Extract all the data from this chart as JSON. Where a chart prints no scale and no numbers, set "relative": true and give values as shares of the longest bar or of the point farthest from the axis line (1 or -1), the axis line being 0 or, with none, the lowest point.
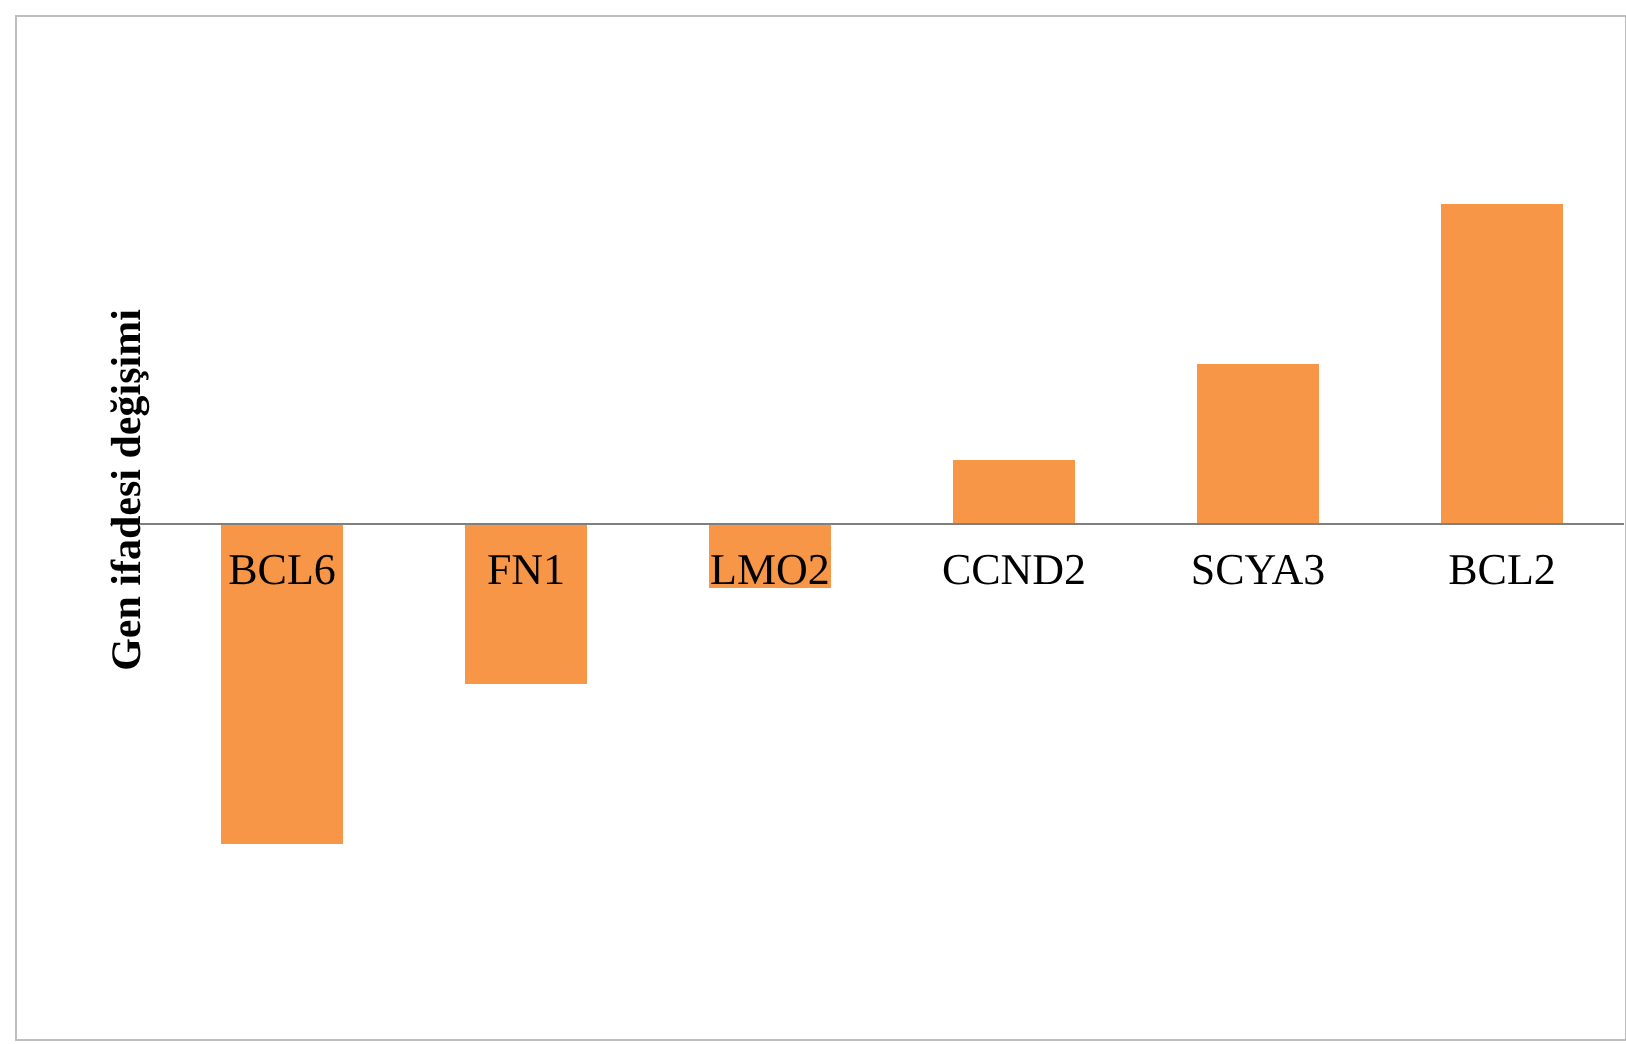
{
  "chart_data": {
    "type": "bar",
    "relative": true,
    "ylabel": "Gen ifadesi değişimi",
    "categories": [
      "BCL6",
      "FN1",
      "LMO2",
      "CCND2",
      "SCYA3",
      "BCL2"
    ],
    "values": [
      -1,
      -0.5,
      -0.2,
      0.2,
      0.5,
      1
    ],
    "color": "#f79646"
  }
}
